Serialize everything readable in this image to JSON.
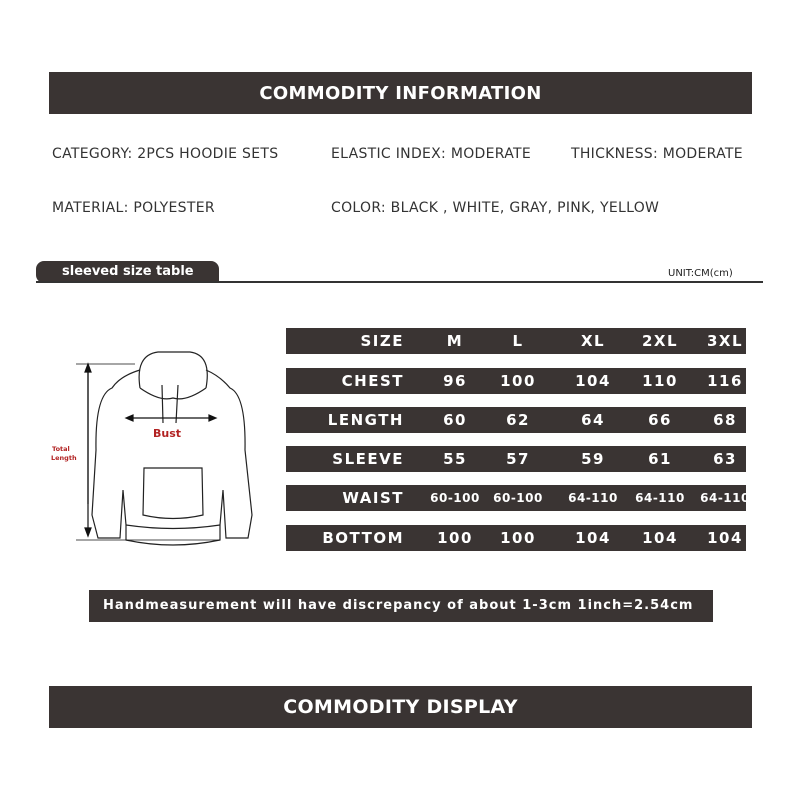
{
  "header_top": "COMMODITY INFORMATION",
  "info": {
    "category": "CATEGORY: 2PCS HOODIE SETS",
    "elastic": "ELASTIC INDEX: MODERATE",
    "thickness": "THICKNESS: MODERATE",
    "material": "MATERIAL: POLYESTER",
    "color": "COLOR: BLACK , WHITE, GRAY, PINK, YELLOW"
  },
  "size_section": {
    "tab": "sleeved size table",
    "unit": "UNIT:CM(cm)"
  },
  "diagram": {
    "bust": "Bust",
    "total_length_1": "Total",
    "total_length_2": "Length",
    "label_color": "#b22222"
  },
  "size_table": [
    {
      "label": "SIZE",
      "values": [
        "M",
        "L",
        "XL",
        "2XL",
        "3XL"
      ]
    },
    {
      "label": "CHEST",
      "values": [
        "96",
        "100",
        "104",
        "110",
        "116"
      ]
    },
    {
      "label": "LENGTH",
      "values": [
        "60",
        "62",
        "64",
        "66",
        "68"
      ]
    },
    {
      "label": "SLEEVE",
      "values": [
        "55",
        "57",
        "59",
        "61",
        "63"
      ]
    },
    {
      "label": "WAIST",
      "values": [
        "60-100",
        "60-100",
        "64-110",
        "64-110",
        "64-110"
      ]
    },
    {
      "label": "BOTTOM",
      "values": [
        "100",
        "100",
        "104",
        "104",
        "104"
      ]
    }
  ],
  "note": "Handmeasurement will have discrepancy of about 1-3cm   1inch=2.54cm",
  "header_bottom": "COMMODITY DISPLAY",
  "colors": {
    "dark_bar": "#3a3433"
  }
}
